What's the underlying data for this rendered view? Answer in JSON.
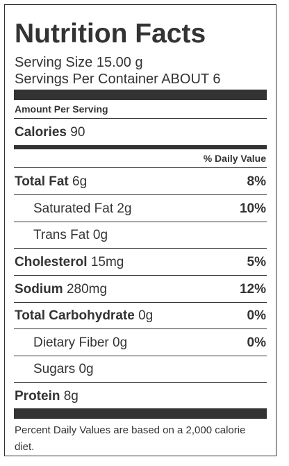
{
  "title": "Nutrition Facts",
  "serving_size": "Serving Size 15.00 g",
  "servings_per_container": "Servings Per Container ABOUT 6",
  "amount_per_serving": "Amount Per Serving",
  "calories": {
    "label": "Calories",
    "value": "90"
  },
  "daily_value_header": "% Daily Value",
  "nutrients": [
    {
      "name": "Total Fat",
      "amount": "6g",
      "percent": "8%"
    },
    {
      "name": "Saturated Fat",
      "amount": "2g",
      "percent": "10%"
    },
    {
      "name": "Trans Fat",
      "amount": "0g",
      "percent": ""
    },
    {
      "name": "Cholesterol",
      "amount": "15mg",
      "percent": "5%"
    },
    {
      "name": "Sodium",
      "amount": "280mg",
      "percent": "12%"
    },
    {
      "name": "Total Carbohydrate",
      "amount": "0g",
      "percent": "0%"
    },
    {
      "name": "Dietary Fiber",
      "amount": "0g",
      "percent": "0%"
    },
    {
      "name": "Sugars",
      "amount": "0g",
      "percent": ""
    },
    {
      "name": "Protein",
      "amount": "8g",
      "percent": ""
    }
  ],
  "footnote": "Percent Daily Values are based on a 2,000 calorie diet."
}
